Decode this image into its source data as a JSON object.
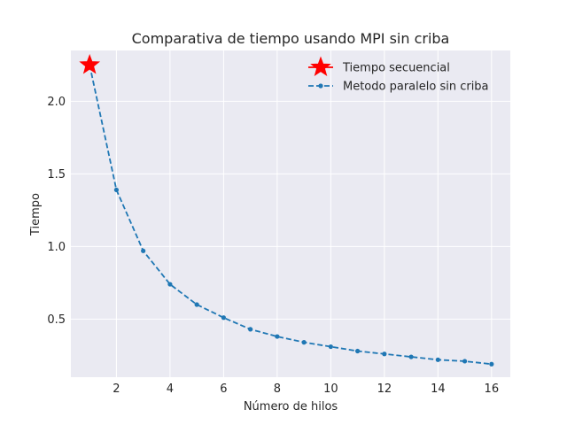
{
  "chart_data": {
    "type": "line",
    "title": "Comparativa de tiempo usando MPI sin criba",
    "xlabel": "Número de hilos",
    "ylabel": "Tiempo",
    "xlim": [
      0.3,
      16.7
    ],
    "ylim": [
      0.1,
      2.35
    ],
    "xticks": [
      2,
      4,
      6,
      8,
      10,
      12,
      14,
      16
    ],
    "yticks": [
      0.5,
      1.0,
      1.5,
      2.0
    ],
    "xtick_labels": [
      "2",
      "4",
      "6",
      "8",
      "10",
      "12",
      "14",
      "16"
    ],
    "ytick_labels": [
      "0.5",
      "1.0",
      "1.5",
      "2.0"
    ],
    "grid": true,
    "legend_position": "top-right",
    "series": [
      {
        "name": "Tiempo secuencial",
        "marker": "star",
        "color": "#ff0000",
        "x": [
          1
        ],
        "y": [
          2.25
        ]
      },
      {
        "name": "Metodo paralelo sin criba",
        "marker": "dot",
        "line_style": "dashed",
        "color": "#1f77b4",
        "x": [
          1,
          2,
          3,
          4,
          5,
          6,
          7,
          8,
          9,
          10,
          11,
          12,
          13,
          14,
          15,
          16
        ],
        "y": [
          2.25,
          1.39,
          0.97,
          0.74,
          0.6,
          0.51,
          0.43,
          0.38,
          0.34,
          0.31,
          0.28,
          0.26,
          0.24,
          0.22,
          0.21,
          0.19
        ]
      }
    ]
  }
}
